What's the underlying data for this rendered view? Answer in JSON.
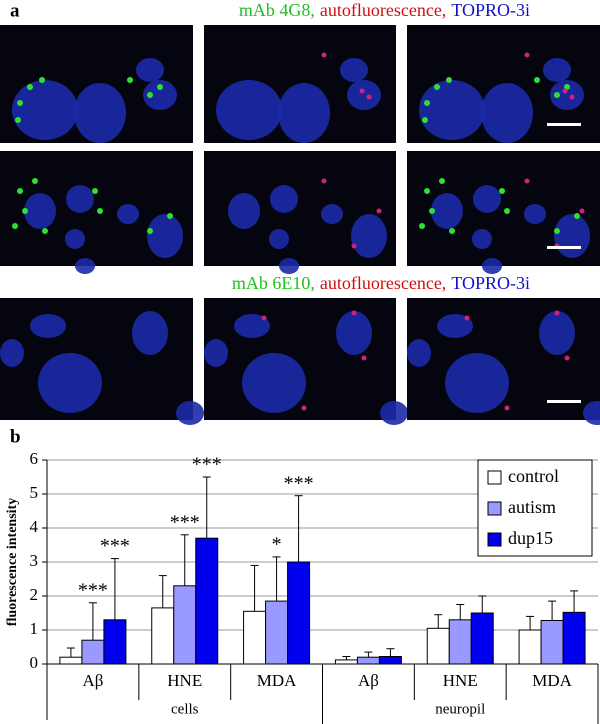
{
  "panel_a": {
    "label": "a",
    "headers": [
      {
        "parts": [
          {
            "text": "mAb 4G8,",
            "color": "#1fbf1f"
          },
          {
            "text": "autofluorescence,",
            "color": "#d01010"
          },
          {
            "text": "TOPRO-3i",
            "color": "#1010c8"
          }
        ]
      },
      {
        "parts": [
          {
            "text": "mAb 6E10,",
            "color": "#1fbf1f"
          },
          {
            "text": "autofluorescence,",
            "color": "#d01010"
          },
          {
            "text": "TOPRO-3i",
            "color": "#1010c8"
          }
        ]
      }
    ]
  },
  "chart_data": {
    "type": "bar",
    "label": "b",
    "y_label": "fluorescence intensity",
    "category_groups": [
      {
        "name": "cells",
        "categories": [
          "Aβ",
          "HNE",
          "MDA"
        ]
      },
      {
        "name": "neuropil",
        "categories": [
          "Aβ",
          "HNE",
          "MDA"
        ]
      }
    ],
    "series": [
      {
        "name": "control",
        "color": "#ffffff",
        "values": [
          0.2,
          1.65,
          1.55,
          0.12,
          1.05,
          1.0
        ],
        "errors": [
          0.27,
          0.95,
          1.35,
          0.1,
          0.4,
          0.4
        ],
        "labels": [
          null,
          null,
          null,
          null,
          null,
          null
        ]
      },
      {
        "name": "autism",
        "color": "#9999ff",
        "values": [
          0.7,
          2.3,
          1.85,
          0.2,
          1.3,
          1.28
        ],
        "errors": [
          1.1,
          1.5,
          1.3,
          0.15,
          0.45,
          0.57
        ],
        "labels": [
          "***",
          "***",
          "*",
          null,
          null,
          null
        ]
      },
      {
        "name": "dup15",
        "color": "#0000ee",
        "values": [
          1.3,
          3.7,
          3.0,
          0.22,
          1.5,
          1.52
        ],
        "errors": [
          1.8,
          1.8,
          1.95,
          0.23,
          0.5,
          0.63
        ],
        "labels": [
          "***",
          "***",
          "***",
          null,
          null,
          null
        ]
      }
    ],
    "ylim": [
      0,
      6
    ],
    "yticks": [
      0,
      1,
      2,
      3,
      4,
      5,
      6
    ],
    "grid": true,
    "legend": "top-right"
  }
}
